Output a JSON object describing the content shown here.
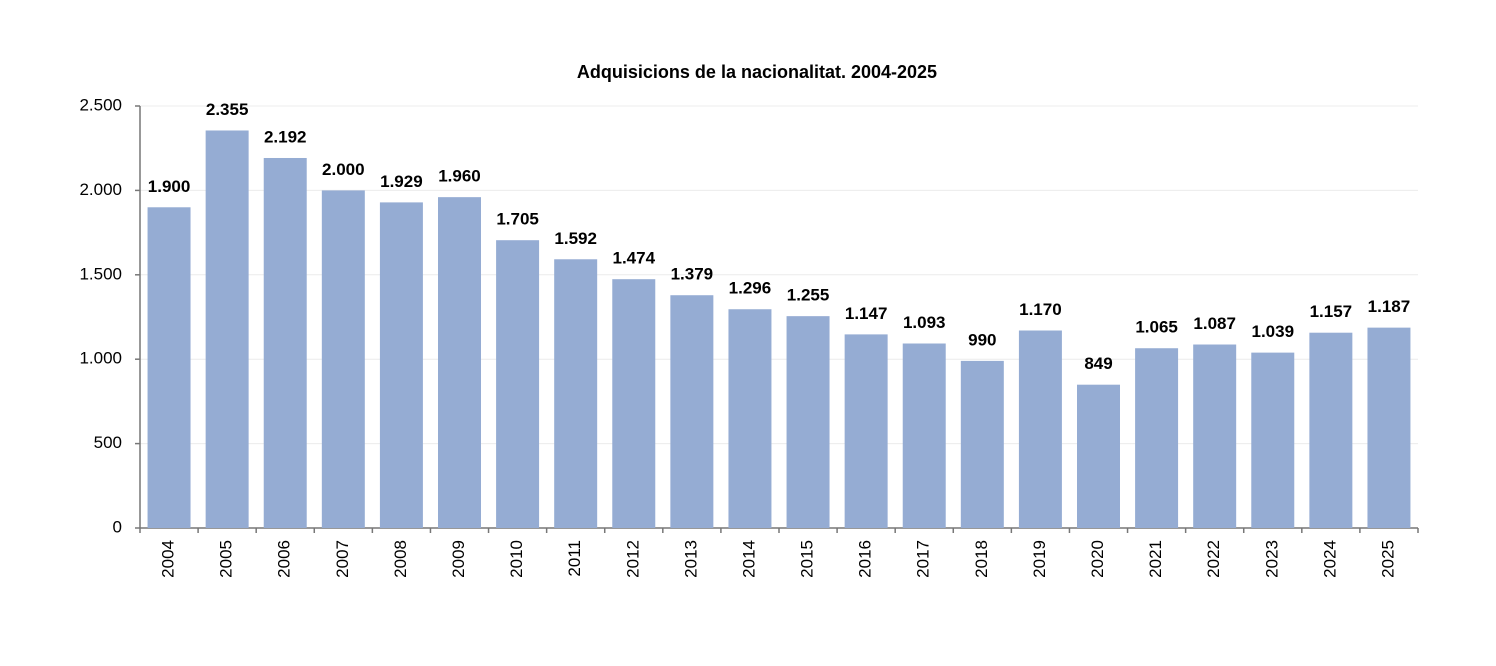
{
  "chart_data": {
    "type": "bar",
    "title": "Adquisicions  de la nacionalitat. 2004-2025",
    "categories": [
      "2004",
      "2005",
      "2006",
      "2007",
      "2008",
      "2009",
      "2010",
      "2011",
      "2012",
      "2013",
      "2014",
      "2015",
      "2016",
      "2017",
      "2018",
      "2019",
      "2020",
      "2021",
      "2022",
      "2023",
      "2024",
      "2025"
    ],
    "values": [
      1900,
      2355,
      2192,
      2000,
      1929,
      1960,
      1705,
      1592,
      1474,
      1379,
      1296,
      1255,
      1147,
      1093,
      990,
      1170,
      849,
      1065,
      1087,
      1039,
      1157,
      1187
    ],
    "value_labels": [
      "1.900",
      "2.355",
      "2.192",
      "2.000",
      "1.929",
      "1.960",
      "1.705",
      "1.592",
      "1.474",
      "1.379",
      "1.296",
      "1.255",
      "1.147",
      "1.093",
      "990",
      "1.170",
      "849",
      "1.065",
      "1.087",
      "1.039",
      "1.157",
      "1.187"
    ],
    "color": "#95acd3",
    "ylim": [
      0,
      2500
    ],
    "yticks": [
      0,
      500,
      {
        "value": 1000,
        "label": "1.000"
      },
      {
        "value": 1500,
        "label": "1.500"
      },
      {
        "value": 2000,
        "label": "2.000"
      },
      {
        "value": 2500,
        "label": "2.500"
      }
    ],
    "grid": true
  }
}
